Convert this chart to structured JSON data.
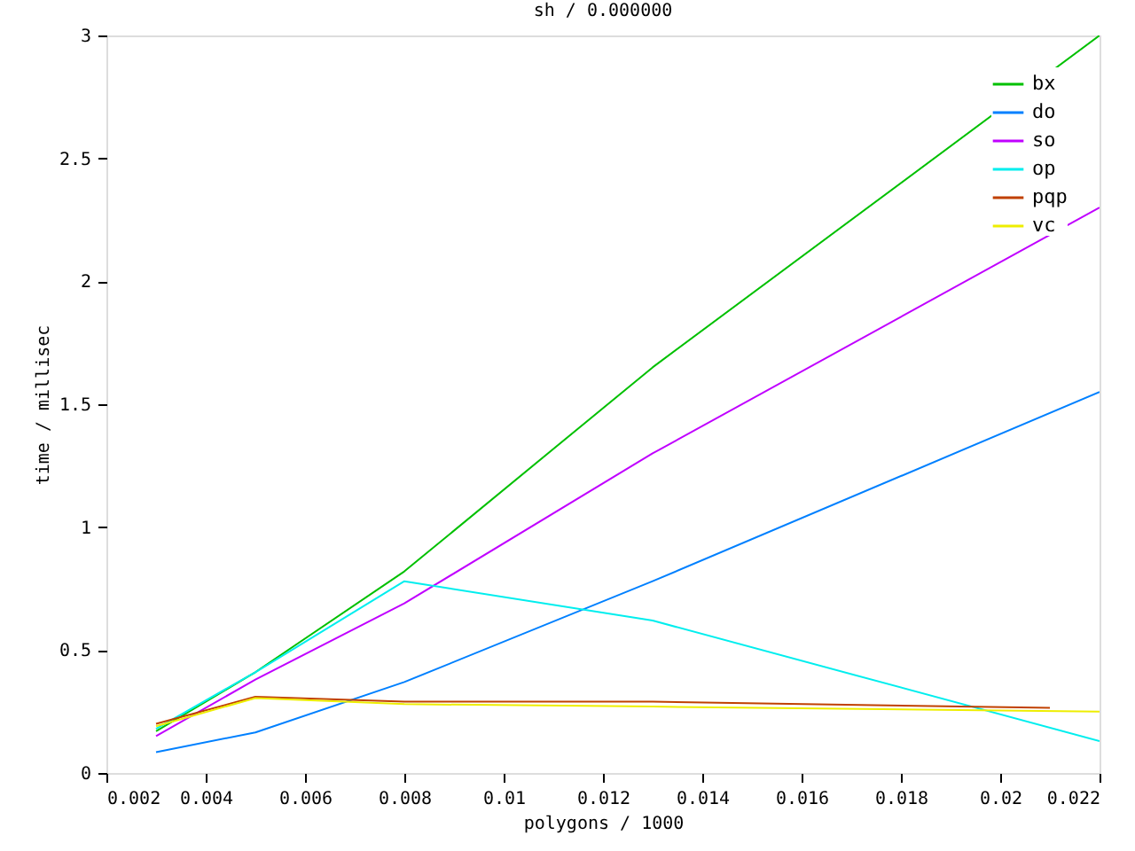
{
  "chart_data": {
    "type": "line",
    "title": "sh / 0.000000",
    "xlabel": "polygons / 1000",
    "ylabel": "time / millisec",
    "xlim": [
      0.002,
      0.022
    ],
    "xticks": [
      0.002,
      0.004,
      0.006,
      0.008,
      0.01,
      0.012,
      0.014,
      0.016,
      0.018,
      0.02,
      0.022
    ],
    "ylim": [
      0,
      3
    ],
    "yticks": [
      0,
      0.5,
      1,
      1.5,
      2,
      2.5,
      3
    ],
    "legend": "top right",
    "grid": false,
    "marker": "none",
    "line_style": "solid",
    "x": [
      0.003,
      0.005,
      0.008,
      0.013,
      0.022
    ],
    "series": [
      {
        "name": "bx",
        "color": "#00c000",
        "values": [
          0.17,
          0.41,
          0.82,
          1.65,
          3.0
        ]
      },
      {
        "name": "do",
        "color": "#0080ff",
        "values": [
          0.085,
          0.165,
          0.37,
          0.78,
          1.55
        ]
      },
      {
        "name": "so",
        "color": "#c000ff",
        "values": [
          0.15,
          0.38,
          0.69,
          1.3,
          2.3
        ]
      },
      {
        "name": "op",
        "color": "#00eeee",
        "values": [
          0.18,
          0.41,
          0.78,
          0.62,
          0.13
        ]
      },
      {
        "name": "pqp",
        "color": "#c04000",
        "x": [
          0.003,
          0.005,
          0.008,
          0.013,
          0.021
        ],
        "values": [
          0.2,
          0.31,
          0.29,
          0.29,
          0.265
        ]
      },
      {
        "name": "vc",
        "color": "#eeee00",
        "values": [
          0.19,
          0.305,
          0.28,
          0.27,
          0.25
        ]
      }
    ]
  }
}
